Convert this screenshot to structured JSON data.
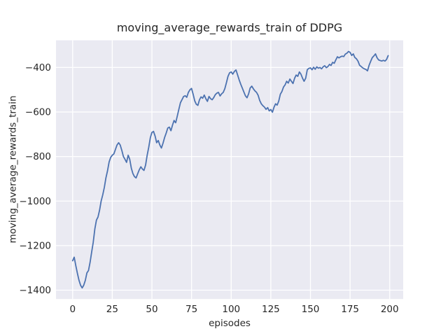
{
  "chart_data": {
    "type": "line",
    "title": "moving_average_rewards_train of DDPG",
    "xlabel": "episodes",
    "ylabel": "moving_average_rewards_train",
    "xlim": [
      -10.5,
      208.5
    ],
    "ylim": [
      -1440,
      -278
    ],
    "xticks": [
      0,
      25,
      50,
      75,
      100,
      125,
      150,
      175,
      200
    ],
    "xtick_labels": [
      "0",
      "25",
      "50",
      "75",
      "100",
      "125",
      "150",
      "175",
      "200"
    ],
    "yticks": [
      -1400,
      -1200,
      -1000,
      -800,
      -600,
      -400
    ],
    "ytick_labels": [
      "−1400",
      "−1200",
      "−1000",
      "−800",
      "−600",
      "−400"
    ],
    "grid": true,
    "legend": false,
    "style": "seaborn-darkgrid",
    "bg_color": "#eaeaf2",
    "grid_color": "#ffffff",
    "line_color": "#4c72b0",
    "text_color": "#262626",
    "series": [
      {
        "name": "moving_average_rewards_train",
        "x": [
          0,
          1,
          2,
          3,
          4,
          5,
          6,
          7,
          8,
          9,
          10,
          11,
          12,
          13,
          14,
          15,
          16,
          17,
          18,
          19,
          20,
          21,
          22,
          23,
          24,
          25,
          26,
          27,
          28,
          29,
          30,
          31,
          32,
          33,
          34,
          35,
          36,
          37,
          38,
          39,
          40,
          41,
          42,
          43,
          44,
          45,
          46,
          47,
          48,
          49,
          50,
          51,
          52,
          53,
          54,
          55,
          56,
          57,
          58,
          59,
          60,
          61,
          62,
          63,
          64,
          65,
          66,
          67,
          68,
          69,
          70,
          71,
          72,
          73,
          74,
          75,
          76,
          77,
          78,
          79,
          80,
          81,
          82,
          83,
          84,
          85,
          86,
          87,
          88,
          89,
          90,
          91,
          92,
          93,
          94,
          95,
          96,
          97,
          98,
          99,
          100,
          101,
          102,
          103,
          104,
          105,
          106,
          107,
          108,
          109,
          110,
          111,
          112,
          113,
          114,
          115,
          116,
          117,
          118,
          119,
          120,
          121,
          122,
          123,
          124,
          125,
          126,
          127,
          128,
          129,
          130,
          131,
          132,
          133,
          134,
          135,
          136,
          137,
          138,
          139,
          140,
          141,
          142,
          143,
          144,
          145,
          146,
          147,
          148,
          149,
          150,
          151,
          152,
          153,
          154,
          155,
          156,
          157,
          158,
          159,
          160,
          161,
          162,
          163,
          164,
          165,
          166,
          167,
          168,
          169,
          170,
          171,
          172,
          173,
          174,
          175,
          176,
          177,
          178,
          179,
          180,
          181,
          182,
          183,
          184,
          185,
          186,
          187,
          188,
          189,
          190,
          191,
          192,
          193,
          194,
          195,
          196,
          197,
          198,
          199
        ],
        "y": [
          -1268,
          -1252,
          -1290,
          -1325,
          -1355,
          -1378,
          -1390,
          -1378,
          -1356,
          -1322,
          -1312,
          -1275,
          -1228,
          -1185,
          -1125,
          -1085,
          -1072,
          -1040,
          -1000,
          -972,
          -938,
          -896,
          -864,
          -824,
          -804,
          -794,
          -788,
          -768,
          -748,
          -738,
          -748,
          -772,
          -800,
          -812,
          -826,
          -794,
          -812,
          -852,
          -876,
          -890,
          -896,
          -878,
          -860,
          -846,
          -856,
          -862,
          -838,
          -795,
          -758,
          -715,
          -692,
          -687,
          -708,
          -738,
          -728,
          -748,
          -762,
          -740,
          -715,
          -695,
          -672,
          -668,
          -684,
          -658,
          -638,
          -648,
          -618,
          -588,
          -558,
          -544,
          -530,
          -527,
          -534,
          -512,
          -500,
          -494,
          -520,
          -550,
          -565,
          -570,
          -545,
          -532,
          -538,
          -524,
          -540,
          -552,
          -530,
          -540,
          -545,
          -535,
          -522,
          -515,
          -512,
          -528,
          -518,
          -512,
          -495,
          -468,
          -440,
          -424,
          -420,
          -430,
          -418,
          -411,
          -432,
          -455,
          -475,
          -492,
          -510,
          -527,
          -536,
          -518,
          -492,
          -484,
          -496,
          -505,
          -512,
          -525,
          -548,
          -563,
          -572,
          -578,
          -588,
          -580,
          -595,
          -589,
          -601,
          -579,
          -563,
          -569,
          -551,
          -520,
          -508,
          -488,
          -478,
          -462,
          -470,
          -452,
          -462,
          -472,
          -448,
          -434,
          -440,
          -420,
          -430,
          -448,
          -462,
          -448,
          -410,
          -404,
          -402,
          -410,
          -399,
          -408,
          -397,
          -403,
          -400,
          -406,
          -397,
          -392,
          -401,
          -396,
          -386,
          -391,
          -377,
          -381,
          -366,
          -352,
          -357,
          -352,
          -349,
          -351,
          -340,
          -336,
          -328,
          -332,
          -346,
          -339,
          -355,
          -361,
          -372,
          -390,
          -396,
          -402,
          -406,
          -409,
          -415,
          -390,
          -372,
          -356,
          -348,
          -339,
          -356,
          -366,
          -369,
          -371,
          -368,
          -371,
          -364,
          -347
        ]
      }
    ]
  }
}
